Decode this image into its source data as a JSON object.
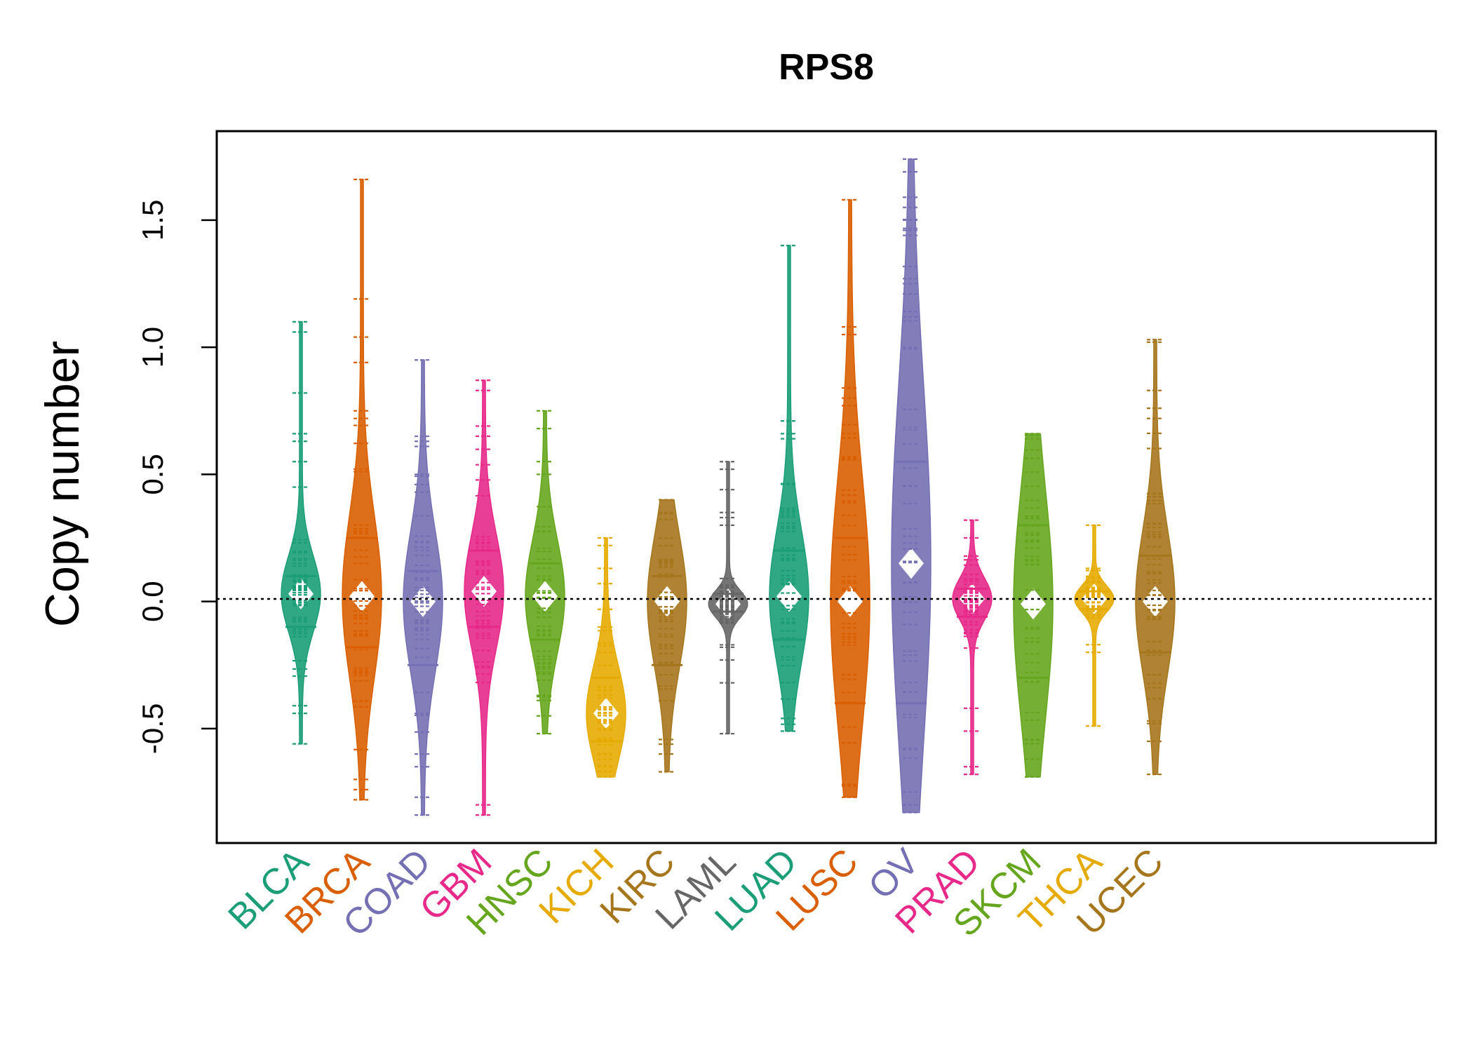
{
  "chart_data": {
    "type": "scatter",
    "subtype": "beanplot",
    "title": "RPS8",
    "xlabel": "",
    "ylabel": "Copy number",
    "ylim": [
      -0.95,
      1.85
    ],
    "yticks": [
      -0.5,
      0.0,
      0.5,
      1.0,
      1.5
    ],
    "ytick_labels": [
      "-0.5",
      "0.0",
      "0.5",
      "1.0",
      "1.5"
    ],
    "reference_line": 0.01,
    "grid": false,
    "legend": "none",
    "categories": [
      "BLCA",
      "BRCA",
      "COAD",
      "GBM",
      "HNSC",
      "KICH",
      "KIRC",
      "LAML",
      "LUAD",
      "LUSC",
      "OV",
      "PRAD",
      "SKCM",
      "THCA",
      "UCEC"
    ],
    "series": [
      {
        "category": "BLCA",
        "color": "#1B9E77",
        "range": [
          -0.56,
          1.1
        ],
        "median": 0.03,
        "quartiles": [
          -0.1,
          0.1
        ],
        "outliers": [
          1.1,
          1.06,
          0.82,
          0.66,
          0.63,
          0.55,
          -0.41,
          -0.44,
          -0.56
        ]
      },
      {
        "category": "BRCA",
        "color": "#D95F02",
        "range": [
          -0.78,
          1.66
        ],
        "median": 0.02,
        "quartiles": [
          -0.18,
          0.25
        ],
        "outliers": [
          1.66,
          1.19,
          1.04,
          0.94,
          0.75,
          0.72,
          -0.7,
          -0.74,
          -0.78
        ]
      },
      {
        "category": "COAD",
        "color": "#7570B3",
        "range": [
          -0.84,
          0.95
        ],
        "median": 0.0,
        "quartiles": [
          -0.25,
          0.12
        ],
        "outliers": [
          0.95,
          0.63,
          0.61,
          0.5,
          0.46,
          0.43,
          -0.6,
          -0.65,
          -0.77,
          -0.84
        ]
      },
      {
        "category": "GBM",
        "color": "#E7298A",
        "range": [
          -0.84,
          0.87
        ],
        "median": 0.04,
        "quartiles": [
          -0.1,
          0.2
        ],
        "outliers": [
          0.87,
          0.83,
          0.69,
          0.65,
          -0.26,
          -0.8,
          -0.84
        ]
      },
      {
        "category": "HNSC",
        "color": "#66A61E",
        "range": [
          -0.52,
          0.75
        ],
        "median": 0.02,
        "quartiles": [
          -0.15,
          0.15
        ],
        "outliers": [
          0.75,
          0.68,
          0.55,
          0.5,
          -0.45,
          -0.52
        ]
      },
      {
        "category": "KICH",
        "color": "#E6AB02",
        "range": [
          -0.69,
          0.25
        ],
        "median": -0.44,
        "quartiles": [
          -0.55,
          -0.3
        ],
        "outliers": [
          0.25,
          0.22,
          0.13,
          -0.2,
          -0.65,
          -0.69
        ]
      },
      {
        "category": "KIRC",
        "color": "#A6761D",
        "range": [
          -0.67,
          0.4
        ],
        "median": 0.0,
        "quartiles": [
          -0.25,
          0.1
        ],
        "outliers": [
          0.4,
          0.22,
          -0.6,
          -0.67
        ]
      },
      {
        "category": "LAML",
        "color": "#666666",
        "range": [
          -0.52,
          0.55
        ],
        "median": -0.01,
        "quartiles": [
          -0.04,
          0.03
        ],
        "outliers": [
          0.55,
          0.52,
          0.44,
          0.35,
          0.33,
          0.3,
          -0.18,
          -0.23,
          -0.32,
          -0.52
        ]
      },
      {
        "category": "LUAD",
        "color": "#1B9E77",
        "range": [
          -0.51,
          1.4
        ],
        "median": 0.02,
        "quartiles": [
          -0.15,
          0.2
        ],
        "outliers": [
          1.4,
          0.71,
          0.66,
          0.64,
          -0.46,
          -0.51
        ]
      },
      {
        "category": "LUSC",
        "color": "#D95F02",
        "range": [
          -0.77,
          1.58
        ],
        "median": 0.0,
        "quartiles": [
          -0.4,
          0.25
        ],
        "outliers": [
          1.58,
          1.08,
          1.05,
          0.84,
          0.8,
          0.77,
          -0.77
        ]
      },
      {
        "category": "OV",
        "color": "#7570B3",
        "range": [
          -0.83,
          1.74
        ],
        "median": 0.15,
        "quartiles": [
          -0.4,
          0.55
        ],
        "outliers": [
          1.74,
          1.69,
          1.59,
          1.55,
          1.5,
          1.46,
          1.44,
          1.27,
          1.25,
          1.21,
          1.12,
          -0.8,
          -0.83
        ]
      },
      {
        "category": "PRAD",
        "color": "#E7298A",
        "range": [
          -0.68,
          0.32
        ],
        "median": 0.01,
        "quartiles": [
          -0.06,
          0.05
        ],
        "outliers": [
          0.32,
          0.25,
          -0.42,
          -0.51,
          -0.65,
          -0.68
        ]
      },
      {
        "category": "SKCM",
        "color": "#66A61E",
        "range": [
          -0.69,
          0.66
        ],
        "median": -0.01,
        "quartiles": [
          -0.3,
          0.3
        ],
        "outliers": [
          0.66,
          0.64,
          -0.62,
          -0.69
        ]
      },
      {
        "category": "THCA",
        "color": "#E6AB02",
        "range": [
          -0.49,
          0.3
        ],
        "median": 0.01,
        "quartiles": [
          -0.03,
          0.04
        ],
        "outliers": [
          0.3,
          0.13,
          -0.17,
          -0.2,
          -0.49
        ]
      },
      {
        "category": "UCEC",
        "color": "#A6761D",
        "range": [
          -0.68,
          1.03
        ],
        "median": 0.0,
        "quartiles": [
          -0.2,
          0.18
        ],
        "outliers": [
          1.03,
          1.02,
          0.83,
          0.76,
          0.72,
          -0.48,
          -0.55,
          -0.68
        ]
      }
    ]
  }
}
